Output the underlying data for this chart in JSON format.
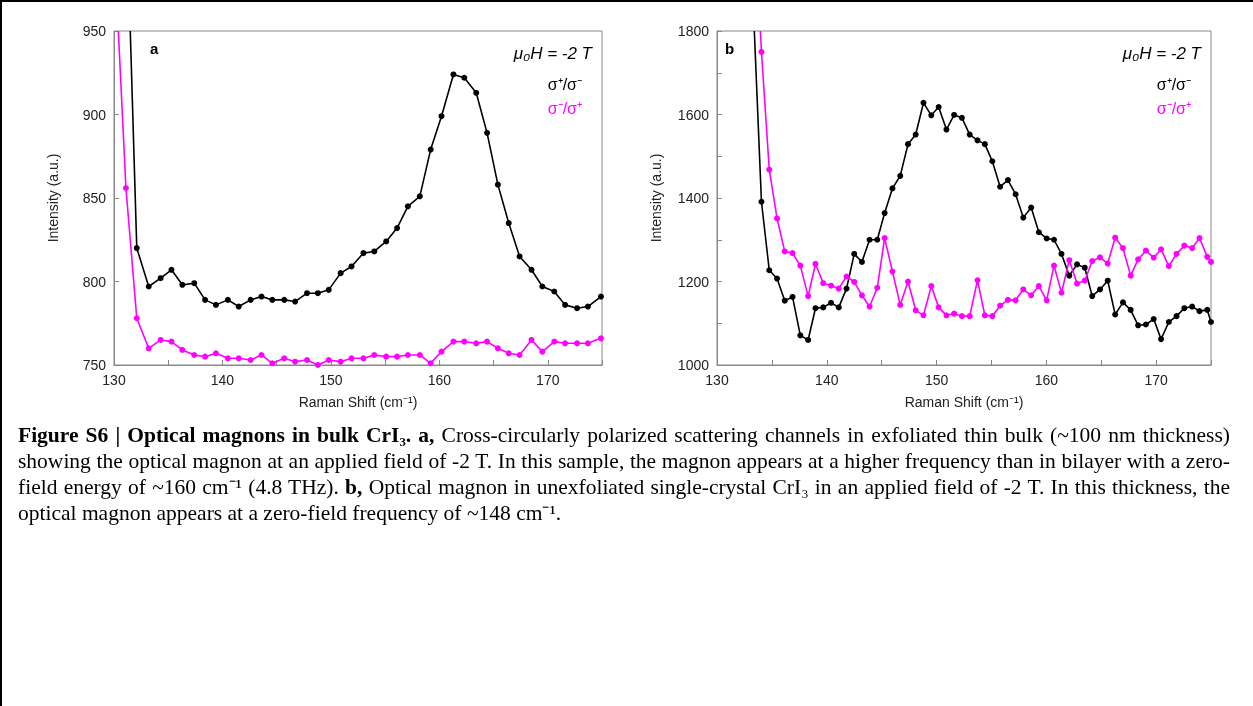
{
  "chart_data": [
    {
      "type": "line",
      "xlabel": "Raman Shift (cm⁻¹)",
      "ylabel": "Intensity (a.u.)",
      "xlim": [
        130,
        175
      ],
      "xticks": [
        130,
        140,
        150,
        160,
        170,
        {
          "value": 135,
          "label": null
        },
        {
          "value": 145,
          "label": null
        },
        {
          "value": 155,
          "label": null
        },
        {
          "value": 165,
          "label": null
        },
        {
          "value": 175,
          "label": null
        }
      ],
      "ylim": [
        750,
        950
      ],
      "yticks": [
        750,
        800,
        850,
        900,
        950
      ],
      "marker": "circle",
      "line_style": "solid",
      "legend": "top right",
      "grid": false,
      "annotations": [
        "a",
        "μ₀H = -2 T",
        "Figure S6 | Optical magnons in bulk CrI₃. a,",
        " Cross-circularly polarized scattering channels in exfoliated thin bulk (~100 nm thickness) showing the optical magnon at an applied field of -2 T. In this sample, the magnon appears at a higher frequency than in bilayer with a zero-field energy of ~160 cm⁻¹ (4.8 THz). ",
        "b,",
        " Optical magnon in unexfoliated single-crystal CrI₃ in an applied field of -2 T. In this thickness, the optical magnon appears at a zero-field frequency of ~148 cm⁻¹."
      ],
      "series": [
        {
          "name": "σ⁺/σ⁻",
          "color": "#000000",
          "x": [
            131.5,
            132.1,
            133.2,
            134.3,
            135.3,
            136.3,
            137.4,
            138.4,
            139.4,
            140.5,
            141.5,
            142.6,
            143.6,
            144.6,
            145.7,
            146.7,
            147.8,
            148.8,
            149.8,
            150.9,
            151.9,
            153.0,
            154.0,
            155.1,
            156.1,
            157.1,
            158.2,
            159.2,
            160.2,
            161.3,
            162.3,
            163.4,
            164.4,
            165.4,
            166.4,
            167.4,
            168.5,
            169.5,
            170.6,
            171.6,
            172.7,
            173.7,
            174.9
          ],
          "values": [
            950,
            820,
            797,
            802,
            807,
            798,
            799,
            789,
            786,
            789,
            785,
            789,
            791,
            789,
            789,
            788,
            793,
            793,
            795,
            805,
            809,
            817,
            818,
            824,
            832,
            845,
            851,
            879,
            899,
            924,
            922,
            913,
            889,
            858,
            835,
            815,
            807,
            797,
            794,
            786,
            784,
            785,
            791
          ]
        },
        {
          "name": "σ⁻/σ⁺",
          "color": "#ff00ff",
          "x": [
            130.4,
            131.1,
            132.1,
            133.2,
            134.3,
            135.3,
            136.3,
            137.4,
            138.4,
            139.4,
            140.5,
            141.5,
            142.6,
            143.6,
            144.6,
            145.7,
            146.7,
            147.8,
            148.8,
            149.8,
            150.9,
            151.9,
            153.0,
            154.0,
            155.1,
            156.1,
            157.1,
            158.2,
            159.2,
            160.2,
            161.3,
            162.3,
            163.4,
            164.4,
            165.4,
            166.4,
            167.4,
            168.5,
            169.5,
            170.6,
            171.6,
            172.7,
            173.7,
            174.9
          ],
          "values": [
            950,
            856,
            778,
            760,
            765,
            764,
            759,
            756,
            755,
            757,
            754,
            754,
            753,
            756,
            751,
            754,
            752,
            753,
            750,
            753,
            752,
            754,
            754,
            756,
            755,
            755,
            756,
            756,
            751,
            758,
            764,
            764,
            763,
            764,
            760,
            757,
            756,
            765,
            758,
            764,
            763,
            763,
            763,
            766
          ]
        }
      ]
    },
    {
      "type": "line",
      "xlabel": "Raman Shift (cm⁻¹)",
      "ylabel": "Intensity (a.u.)",
      "xlim": [
        130,
        175
      ],
      "xticks": [
        130,
        140,
        150,
        160,
        170,
        {
          "value": 135,
          "label": null
        },
        {
          "value": 145,
          "label": null
        },
        {
          "value": 155,
          "label": null
        },
        {
          "value": 165,
          "label": null
        },
        {
          "value": 175,
          "label": null
        }
      ],
      "ylim": [
        1000,
        1800
      ],
      "yticks": [
        1000,
        {
          "value": 1100,
          "label": null
        },
        1200,
        {
          "value": 1300,
          "label": null
        },
        1400,
        {
          "value": 1500,
          "label": null
        },
        1600,
        {
          "value": 1700,
          "label": null
        },
        1800
      ],
      "marker": "circle",
      "line_style": "solid",
      "legend": "top right",
      "grid": false,
      "annotations": [
        "b",
        "μ₀H = -2 T"
      ],
      "series": [
        {
          "name": "σ⁺/σ⁻",
          "color": "#000000",
          "x": [
            133.4,
            134.05,
            134.76,
            135.47,
            136.17,
            136.88,
            137.59,
            138.3,
            138.97,
            139.68,
            140.39,
            141.09,
            141.8,
            142.5,
            143.2,
            143.9,
            144.6,
            145.27,
            145.98,
            146.69,
            147.4,
            148.1,
            148.81,
            149.52,
            150.19,
            150.9,
            151.6,
            152.31,
            153.02,
            153.73,
            154.4,
            155.08,
            155.79,
            156.5,
            157.2,
            157.9,
            158.62,
            159.32,
            160.03,
            160.7,
            161.38,
            162.09,
            162.8,
            163.5,
            164.18,
            164.89,
            165.59,
            166.27,
            166.98,
            167.68,
            168.36,
            169.07,
            169.78,
            170.45,
            171.16,
            171.86,
            172.57,
            173.28,
            173.95,
            174.66,
            175
          ],
          "values": [
            1800,
            1391,
            1227,
            1207,
            1154,
            1163,
            1071,
            1060,
            1136,
            1138,
            1149,
            1138,
            1183,
            1266,
            1247,
            1300,
            1300,
            1364,
            1423,
            1453,
            1529,
            1552,
            1628,
            1598,
            1618,
            1564,
            1599,
            1592,
            1552,
            1538,
            1529,
            1488,
            1427,
            1443,
            1409,
            1353,
            1377,
            1318,
            1303,
            1300,
            1266,
            1214,
            1241,
            1233,
            1165,
            1181,
            1202,
            1121,
            1150,
            1132,
            1095,
            1097,
            1110,
            1062,
            1103,
            1117,
            1136,
            1140,
            1129,
            1132,
            1103
          ]
        },
        {
          "name": "σ⁻/σ⁺",
          "color": "#ff00ff",
          "x": [
            133.95,
            134.05,
            134.76,
            135.47,
            136.17,
            136.88,
            137.59,
            138.3,
            138.97,
            139.68,
            140.39,
            141.09,
            141.8,
            142.5,
            143.2,
            143.9,
            144.6,
            145.27,
            145.98,
            146.69,
            147.4,
            148.1,
            148.81,
            149.52,
            150.19,
            150.9,
            151.6,
            152.31,
            153.02,
            153.73,
            154.4,
            155.08,
            155.79,
            156.5,
            157.2,
            157.9,
            158.62,
            159.32,
            160.03,
            160.7,
            161.38,
            162.09,
            162.8,
            163.5,
            164.18,
            164.89,
            165.59,
            166.27,
            166.98,
            167.68,
            168.36,
            169.07,
            169.78,
            170.45,
            171.16,
            171.86,
            172.57,
            173.28,
            173.95,
            174.66,
            175
          ],
          "values": [
            1800,
            1750,
            1468,
            1351,
            1272,
            1268,
            1238,
            1165,
            1242,
            1196,
            1190,
            1183,
            1212,
            1199,
            1167,
            1140,
            1185,
            1304,
            1224,
            1144,
            1200,
            1131,
            1119,
            1189,
            1138,
            1119,
            1123,
            1117,
            1117,
            1203,
            1119,
            1117,
            1142,
            1156,
            1155,
            1181,
            1167,
            1189,
            1155,
            1238,
            1173,
            1251,
            1195,
            1202,
            1249,
            1258,
            1243,
            1305,
            1280,
            1214,
            1253,
            1274,
            1257,
            1277,
            1237,
            1266,
            1286,
            1280,
            1304,
            1259,
            1247
          ]
        }
      ]
    }
  ]
}
